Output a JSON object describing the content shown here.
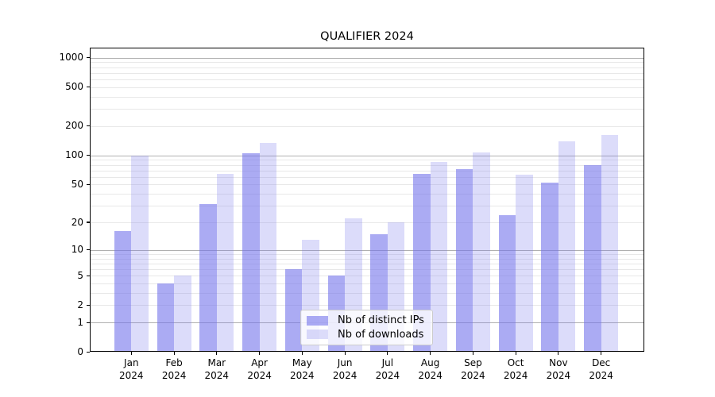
{
  "chart_data": {
    "type": "bar",
    "title": "QUALIFIER 2024",
    "x_year": "2024",
    "categories": [
      "Jan",
      "Feb",
      "Mar",
      "Apr",
      "May",
      "Jun",
      "Jul",
      "Aug",
      "Sep",
      "Oct",
      "Nov",
      "Dec"
    ],
    "series": [
      {
        "name": "Nb of distinct IPs",
        "color": "rgba(115,115,235,0.60)",
        "values": [
          16,
          4,
          31,
          105,
          6,
          5,
          15,
          65,
          72,
          24,
          52,
          80
        ]
      },
      {
        "name": "Nb of downloads",
        "color": "rgba(115,115,235,0.25)",
        "values": [
          100,
          5,
          64,
          135,
          13,
          22,
          20,
          86,
          108,
          63,
          140,
          163
        ]
      }
    ],
    "y_ticks": [
      {
        "label": "0",
        "value": 0
      },
      {
        "label": "1",
        "value": 1
      },
      {
        "label": "2",
        "value": 2
      },
      {
        "label": "5",
        "value": 5
      },
      {
        "label": "10",
        "value": 10
      },
      {
        "label": "20",
        "value": 20
      },
      {
        "label": "50",
        "value": 50
      },
      {
        "label": "100",
        "value": 100
      },
      {
        "label": "200",
        "value": 200
      },
      {
        "label": "500",
        "value": 500
      },
      {
        "label": "1000",
        "value": 1000
      }
    ],
    "y_scale": "log10(1+x)",
    "ylim": [
      0,
      1270
    ],
    "xlabel": "",
    "ylabel": "",
    "grid": {
      "major_values": [
        1,
        10,
        100,
        1000
      ],
      "minor_values": [
        2,
        3,
        4,
        5,
        6,
        7,
        8,
        9,
        20,
        30,
        40,
        50,
        60,
        70,
        80,
        90,
        200,
        300,
        400,
        500,
        600,
        700,
        800,
        900
      ],
      "major_color": "#b0b0b0",
      "minor_color": "#e8e8e8"
    },
    "legend": {
      "position": "lower center"
    },
    "axis_color": "#000000"
  }
}
